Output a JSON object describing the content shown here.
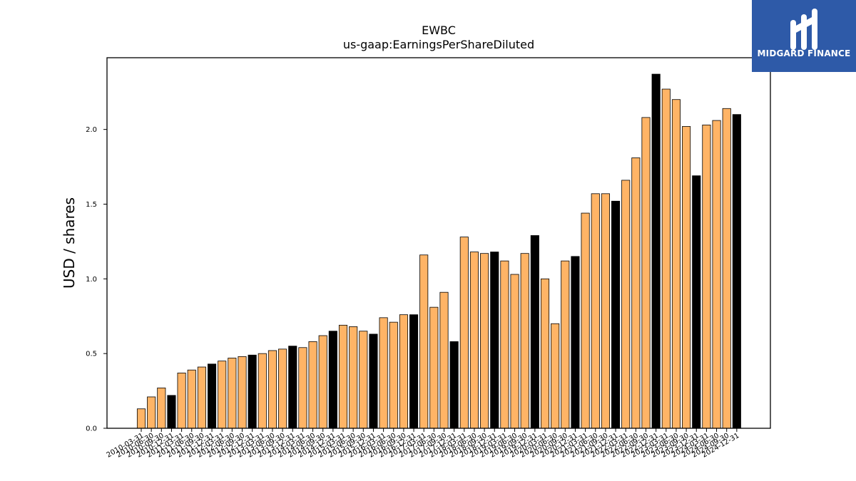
{
  "chart_data": {
    "type": "bar",
    "title": "EWBC",
    "subtitle": "us-gaap:EarningsPerShareDiluted",
    "xlabel": "",
    "ylabel": "USD / shares",
    "ylim": [
      0,
      2.48
    ],
    "yticks": [
      "0.0",
      "0.5",
      "1.0",
      "1.5",
      "2.0"
    ],
    "grid": false,
    "colors": {
      "normal": "#ffb466",
      "highlight": "#000000",
      "edge": "#000000"
    },
    "categories": [
      "2010-03-31",
      "2010-06-30",
      "2010-09-30",
      "2010-12-31",
      "2011-03-31",
      "2011-06-30",
      "2011-09-30",
      "2011-12-31",
      "2012-03-31",
      "2012-06-30",
      "2012-09-30",
      "2012-12-31",
      "2013-03-31",
      "2013-06-30",
      "2013-09-30",
      "2013-12-31",
      "2014-03-31",
      "2014-06-30",
      "2014-09-30",
      "2014-12-31",
      "2015-03-31",
      "2015-06-30",
      "2015-09-30",
      "2015-12-31",
      "2016-03-31",
      "2016-06-30",
      "2016-09-30",
      "2016-12-31",
      "2017-03-31",
      "2017-06-30",
      "2017-09-30",
      "2017-12-31",
      "2018-03-31",
      "2018-06-30",
      "2018-09-30",
      "2018-12-31",
      "2019-03-31",
      "2019-06-30",
      "2019-09-30",
      "2019-12-31",
      "2020-03-31",
      "2020-06-30",
      "2020-09-30",
      "2020-12-31",
      "2021-03-31",
      "2021-06-30",
      "2021-09-30",
      "2021-12-31",
      "2022-03-31",
      "2022-06-30",
      "2022-09-30",
      "2022-12-31",
      "2023-03-31",
      "2023-06-30",
      "2023-09-30",
      "2023-12-31",
      "2024-03-31",
      "2024-06-30",
      "2024-09-30",
      "2024-12-31"
    ],
    "values": [
      0.13,
      0.21,
      0.27,
      0.22,
      0.37,
      0.39,
      0.41,
      0.43,
      0.45,
      0.47,
      0.48,
      0.49,
      0.5,
      0.52,
      0.53,
      0.55,
      0.54,
      0.58,
      0.62,
      0.65,
      0.69,
      0.68,
      0.65,
      0.63,
      0.74,
      0.71,
      0.76,
      0.76,
      1.16,
      0.81,
      0.91,
      0.58,
      1.28,
      1.18,
      1.17,
      1.18,
      1.12,
      1.03,
      1.17,
      1.29,
      1.0,
      0.7,
      1.12,
      1.15,
      1.44,
      1.57,
      1.57,
      1.52,
      1.66,
      1.81,
      2.08,
      2.37,
      2.27,
      2.2,
      2.02,
      1.69,
      2.03,
      2.06,
      2.14,
      2.1
    ],
    "highlight_indices": [
      3,
      7,
      11,
      15,
      19,
      23,
      27,
      31,
      35,
      39,
      43,
      47,
      51,
      55,
      59
    ]
  },
  "brand": {
    "name": "MIDGARD FINANCE",
    "background": "#2e5aa8"
  }
}
